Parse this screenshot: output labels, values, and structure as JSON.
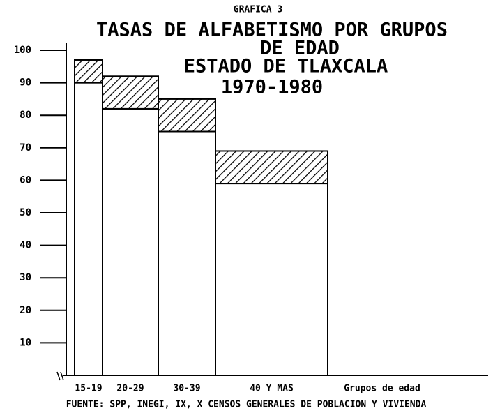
{
  "chart_data": {
    "type": "bar",
    "stacked": true,
    "chart_number": "GRAFICA 3",
    "title": [
      "TASAS DE ALFABETISMO POR GRUPOS",
      "DE EDAD"
    ],
    "subtitle": [
      "ESTADO DE TLAXCALA",
      "1970-1980"
    ],
    "x_label": "Grupos de edad",
    "source": "FUENTE: SPP, INEGI, IX, X  CENSOS GENERALES DE POBLACION Y VIVIENDA",
    "categories": [
      "15-19",
      "20-29",
      "30-39",
      "40 Y MAS"
    ],
    "series": [
      {
        "color": "#ffffff",
        "pattern": "solid",
        "values": [
          90,
          82,
          75,
          59
        ]
      },
      {
        "color": "#ffffff",
        "pattern": "hatch",
        "values": [
          7,
          10,
          10,
          10
        ]
      }
    ],
    "ylim": [
      0,
      100
    ],
    "yticks": [
      10,
      20,
      30,
      40,
      50,
      60,
      70,
      80,
      90,
      100
    ]
  }
}
